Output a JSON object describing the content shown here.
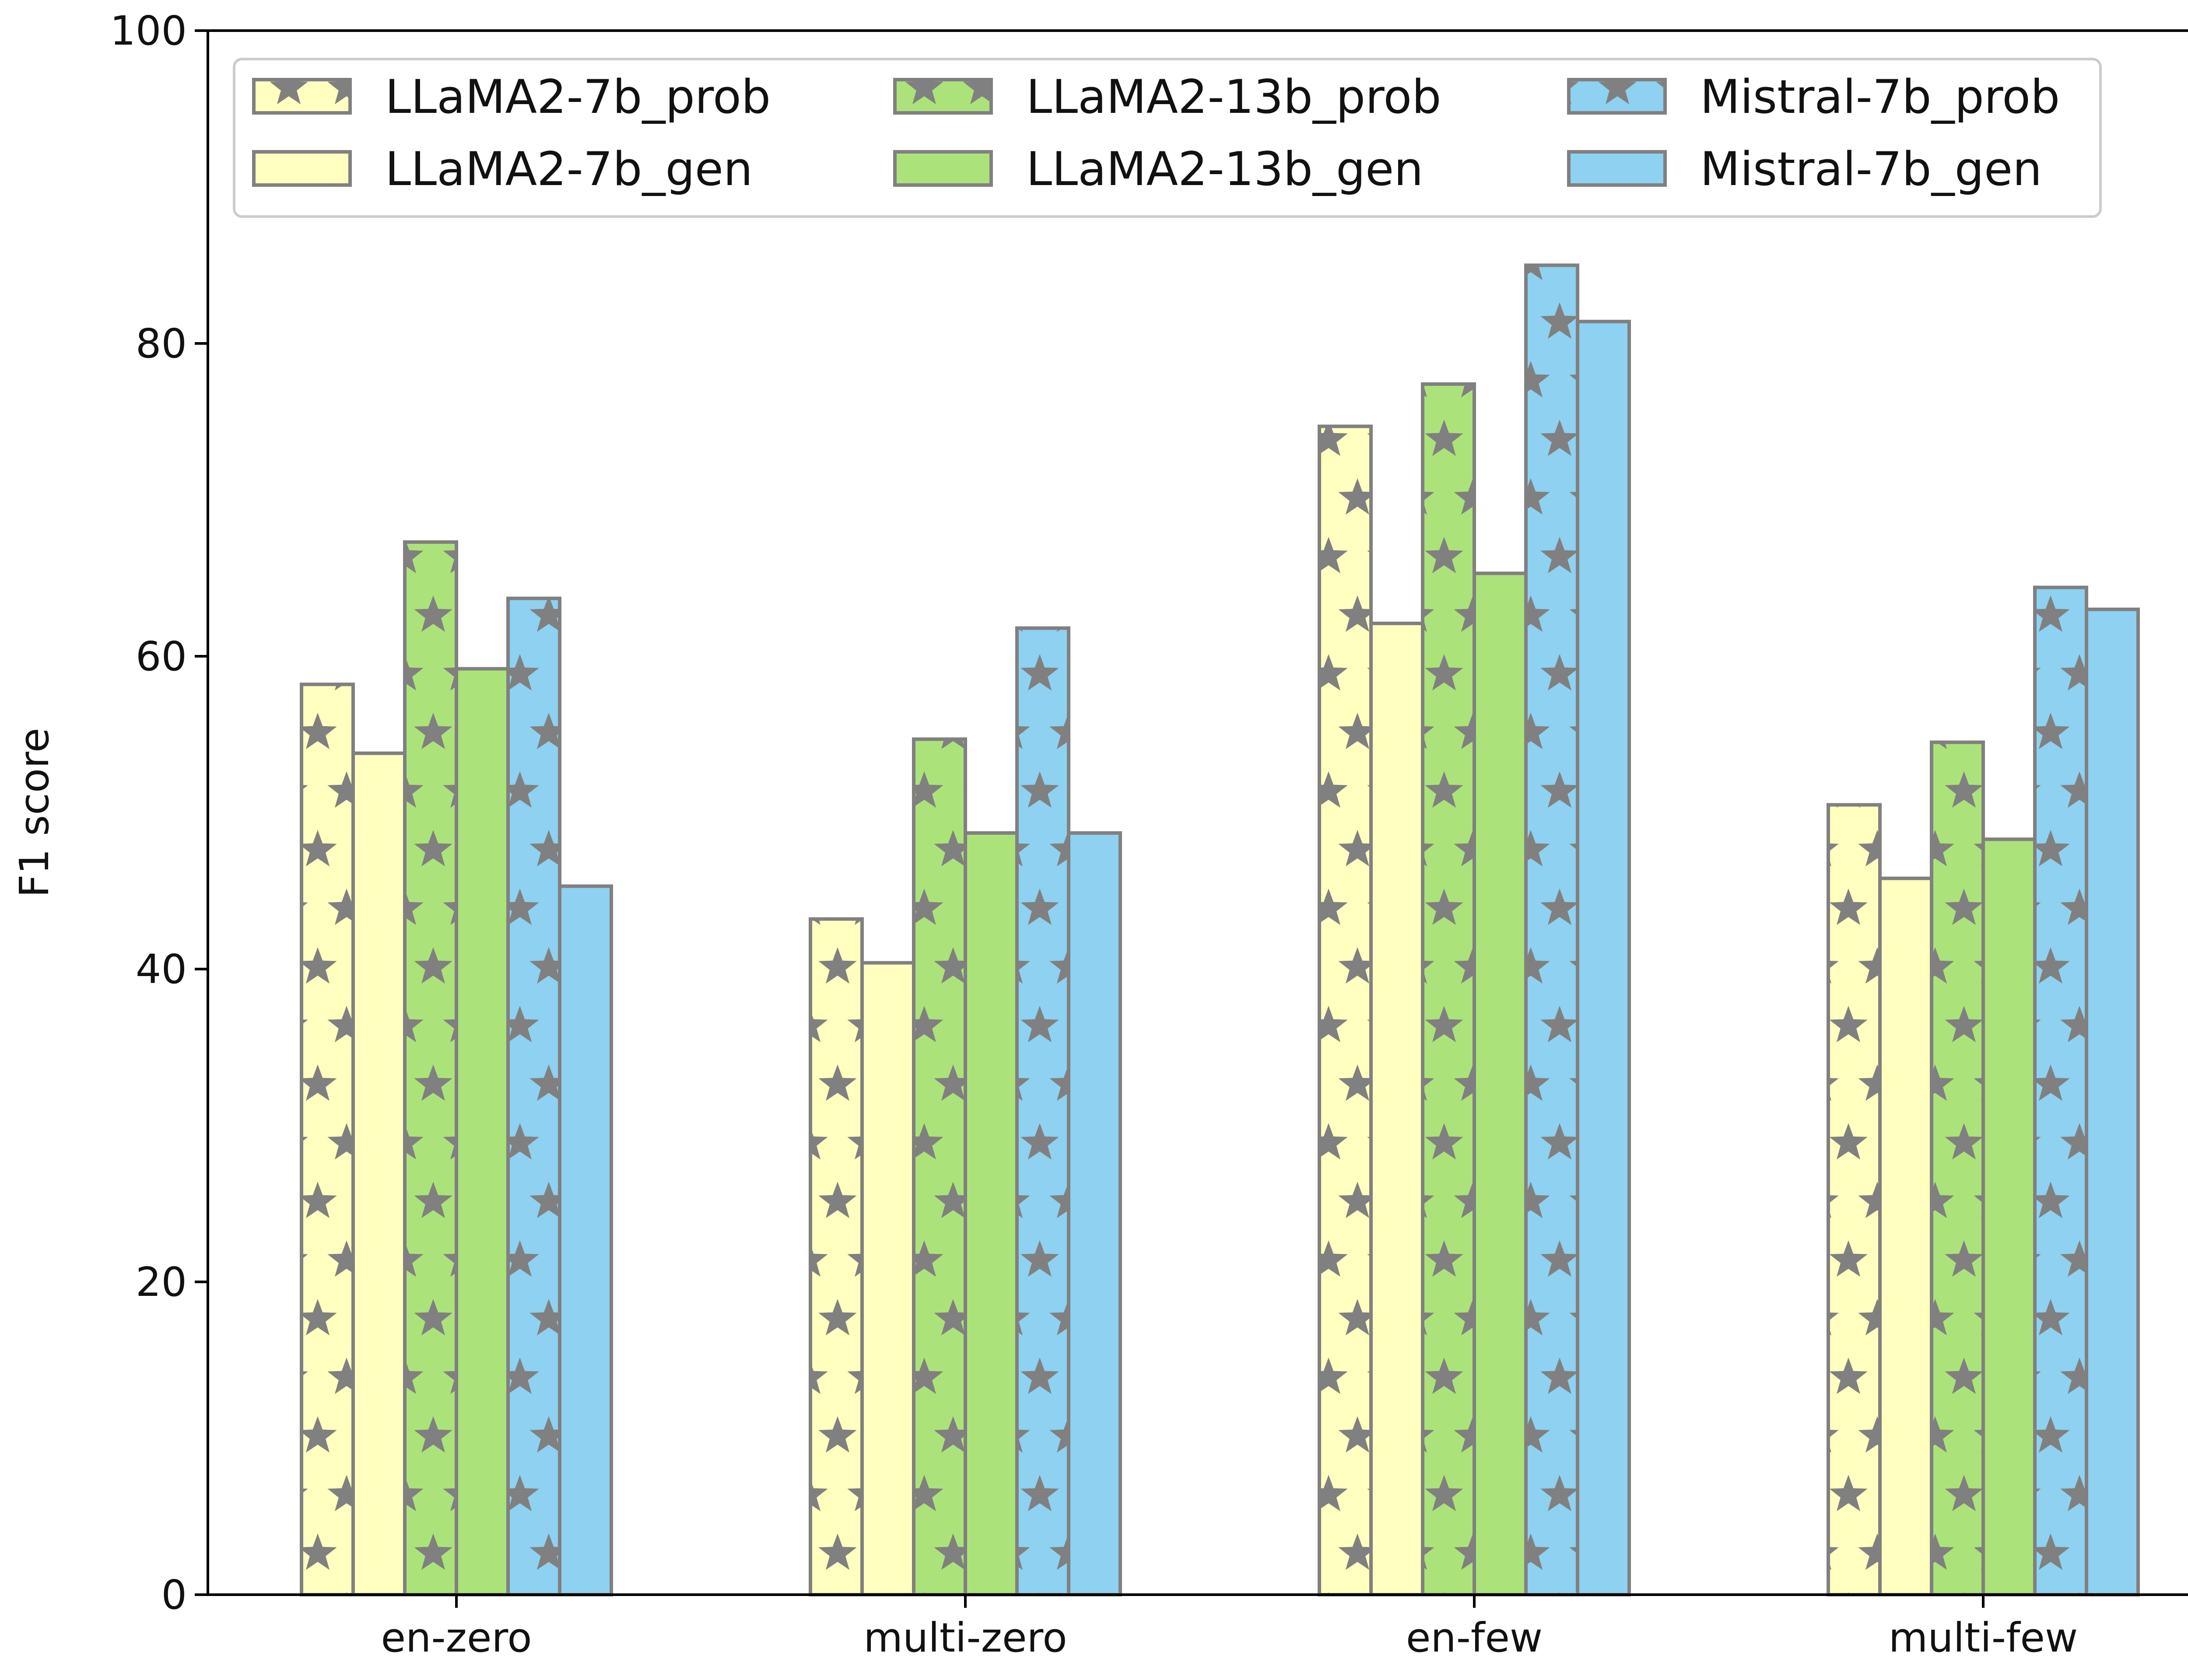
{
  "chart_data": {
    "type": "bar",
    "title": "",
    "xlabel": "",
    "ylabel": "F1 score",
    "ylim": [
      0,
      100
    ],
    "yticks": [
      "0",
      "20",
      "40",
      "60",
      "80",
      "100"
    ],
    "categories": [
      "en-zero",
      "multi-zero",
      "en-few",
      "multi-few"
    ],
    "legend_position": "top",
    "series": [
      {
        "name": "LLaMA2-7b_prob",
        "values": [
          58.2,
          43.2,
          74.7,
          50.5
        ],
        "color": "#ffffbf",
        "hatch": "star"
      },
      {
        "name": "LLaMA2-7b_gen",
        "values": [
          53.8,
          40.4,
          62.1,
          45.8
        ],
        "color": "#ffffbf",
        "hatch": "none"
      },
      {
        "name": "LLaMA2-13b_prob",
        "values": [
          67.3,
          54.7,
          77.4,
          54.5
        ],
        "color": "#abe37a",
        "hatch": "star"
      },
      {
        "name": "LLaMA2-13b_gen",
        "values": [
          59.2,
          48.7,
          65.3,
          48.3
        ],
        "color": "#abe37a",
        "hatch": "none"
      },
      {
        "name": "Mistral-7b_prob",
        "values": [
          63.7,
          61.8,
          85.0,
          64.4
        ],
        "color": "#8ed1f0",
        "hatch": "star"
      },
      {
        "name": "Mistral-7b_gen",
        "values": [
          45.3,
          48.7,
          81.4,
          63.0
        ],
        "color": "#8ed1f0",
        "hatch": "none"
      }
    ],
    "bar_edge_color": "#808080",
    "star_color": "#808080"
  }
}
